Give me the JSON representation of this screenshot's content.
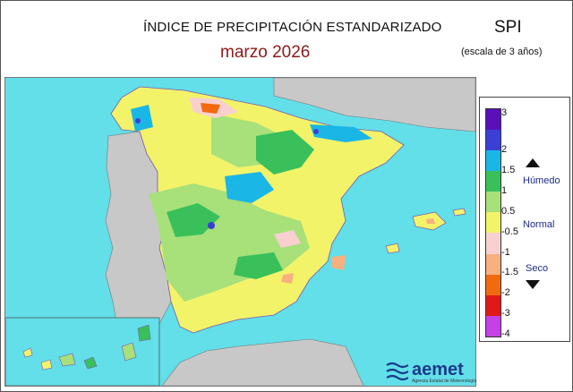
{
  "header": {
    "title": "ÍNDICE DE PRECIPITACIÓN ESTANDARIZADO",
    "subtitle": "marzo  2026",
    "index_name": "SPI",
    "scale_note": "(escala de 3 años)"
  },
  "legend": {
    "ticks": [
      "3",
      "2",
      "1.5",
      "1",
      "0.5",
      "-0.5",
      "-1",
      "-1.5",
      "-2",
      "-3",
      "-4"
    ],
    "labels": {
      "wet": "Húmedo",
      "normal": "Normal",
      "dry": "Seco"
    },
    "colors": [
      "#5a10b8",
      "#3b3fd6",
      "#1ab6e6",
      "#39c05a",
      "#a8e07a",
      "#f3f36a",
      "#f8d0d0",
      "#f8b080",
      "#f26a10",
      "#e01818",
      "#c640e8"
    ]
  },
  "map": {
    "sea_color": "#62dfe8",
    "land_outside_color": "#c8c8c8",
    "border_color": "#7a58b0"
  },
  "logo": {
    "name": "aemet",
    "tagline": "Agencia Estatal de Meteorología"
  }
}
